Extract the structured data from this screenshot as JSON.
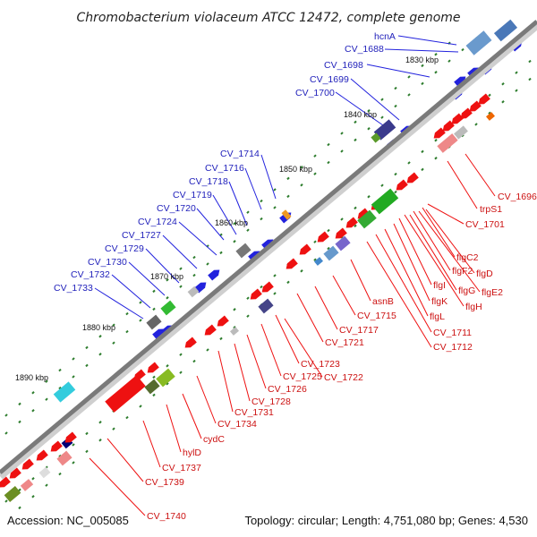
{
  "title": "Chromobacterium violaceum ATCC 12472, complete genome",
  "footer": {
    "accession": "Accession: NC_005085",
    "summary": "Topology: circular; Length: 4,751,080 bp; Genes: 4,530"
  },
  "colors": {
    "forward": "#2222dd",
    "reverse": "#ee1111",
    "backbone": "#777777",
    "tick": "#2e7d2e"
  },
  "scale_labels": [
    "1830 kbp",
    "1840 kbp",
    "1850 kbp",
    "1860 kbp",
    "1870 kbp",
    "1880 kbp",
    "1890 kbp"
  ],
  "forward_genes": [
    "hcnA",
    "CV_1688",
    "CV_1698",
    "CV_1699",
    "CV_1700",
    "CV_1714",
    "CV_1716",
    "CV_1718",
    "CV_1719",
    "CV_1720",
    "CV_1724",
    "CV_1727",
    "CV_1729",
    "CV_1730",
    "CV_1732",
    "CV_1733"
  ],
  "reverse_genes": [
    "CV_1696",
    "trpS1",
    "CV_1701",
    "flgC2",
    "flgD",
    "flgF2",
    "flgE2",
    "flgG",
    "flgI",
    "flgH",
    "flgK",
    "flgL",
    "CV_1711",
    "asnB",
    "CV_1712",
    "CV_1715",
    "CV_1717",
    "CV_1721",
    "CV_1723",
    "CV_1725",
    "CV_1722",
    "CV_1726",
    "CV_1728",
    "CV_1731",
    "CV_1734",
    "cydC",
    "hylD",
    "CV_1737",
    "CV_1739",
    "CV_1740"
  ]
}
